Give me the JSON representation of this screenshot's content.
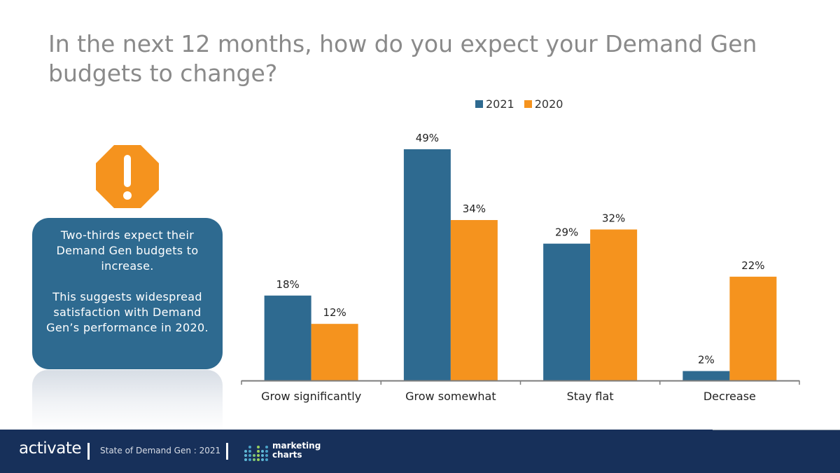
{
  "title": "In the next 12 months, how do you expect your Demand Gen budgets to change?",
  "callout": {
    "line1": "Two-thirds expect their Demand Gen budgets to increase.",
    "line2": "This suggests widespread satisfaction with Demand Gen’s performance in 2020."
  },
  "legend": [
    "2021",
    "2020"
  ],
  "footer": {
    "brand": "activate",
    "report": "State of Demand Gen : 2021",
    "logo_line1": "marketing",
    "logo_line2": "charts"
  },
  "colors": {
    "s2021": "#2e6a90",
    "s2020": "#f5931e",
    "footer": "#17305a",
    "stop": "#f5931e"
  },
  "chart_data": {
    "type": "bar",
    "categories": [
      "Grow significantly",
      "Grow somewhat",
      "Stay flat",
      "Decrease"
    ],
    "series": [
      {
        "name": "2021",
        "values": [
          18,
          49,
          29,
          2
        ],
        "labels": [
          "18%",
          "49%",
          "29%",
          "2%"
        ]
      },
      {
        "name": "2020",
        "values": [
          12,
          34,
          32,
          22
        ],
        "labels": [
          "12%",
          "34%",
          "32%",
          "22%"
        ]
      }
    ],
    "ylim": [
      0,
      49
    ],
    "value_suffix": "%",
    "grid": false,
    "legend_position": "top-center"
  }
}
